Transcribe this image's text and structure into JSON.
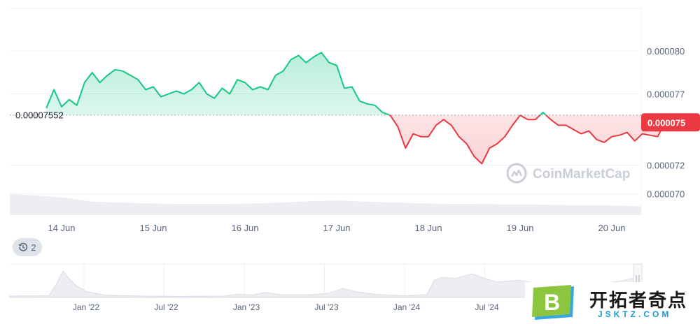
{
  "chart_data": {
    "type": "area",
    "title": "",
    "xlabel": "",
    "ylabel": "",
    "x_ticks": [
      "14 Jun",
      "15 Jun",
      "16 Jun",
      "17 Jun",
      "18 Jun",
      "19 Jun",
      "20 Jun"
    ],
    "y_ticks": [
      "0.000080",
      "0.000077",
      "0.000072",
      "0.000070"
    ],
    "ylim": [
      6.85e-05,
      8.3e-05
    ],
    "reference_value": 7.552e-05,
    "reference_label": "0.00007552",
    "current_price": 7.5e-05,
    "current_price_label": "0.000075",
    "up_color": "#16c784",
    "down_color": "#ea3943",
    "series": [
      {
        "x": [
          "13 Jun 20:00",
          "13 Jun 22:00",
          "14 Jun 00:00",
          "14 Jun 02:00",
          "14 Jun 04:00",
          "14 Jun 06:00",
          "14 Jun 08:00",
          "14 Jun 10:00",
          "14 Jun 12:00",
          "14 Jun 14:00",
          "14 Jun 16:00",
          "14 Jun 18:00",
          "14 Jun 20:00",
          "14 Jun 22:00",
          "15 Jun 00:00",
          "15 Jun 02:00",
          "15 Jun 04:00",
          "15 Jun 06:00",
          "15 Jun 08:00",
          "15 Jun 10:00",
          "15 Jun 12:00",
          "15 Jun 14:00",
          "15 Jun 16:00",
          "15 Jun 18:00",
          "15 Jun 20:00",
          "15 Jun 22:00",
          "16 Jun 00:00",
          "16 Jun 02:00",
          "16 Jun 04:00",
          "16 Jun 06:00",
          "16 Jun 08:00",
          "16 Jun 10:00",
          "16 Jun 12:00",
          "16 Jun 14:00",
          "16 Jun 16:00",
          "16 Jun 18:00",
          "16 Jun 20:00",
          "16 Jun 22:00",
          "17 Jun 00:00",
          "17 Jun 02:00",
          "17 Jun 04:00",
          "17 Jun 06:00",
          "17 Jun 08:00",
          "17 Jun 10:00",
          "17 Jun 12:00",
          "17 Jun 14:00",
          "17 Jun 16:00",
          "17 Jun 18:00",
          "17 Jun 20:00",
          "17 Jun 22:00",
          "18 Jun 00:00",
          "18 Jun 02:00",
          "18 Jun 04:00",
          "18 Jun 06:00",
          "18 Jun 08:00",
          "18 Jun 10:00",
          "18 Jun 12:00",
          "18 Jun 14:00",
          "18 Jun 16:00",
          "18 Jun 18:00",
          "18 Jun 20:00",
          "18 Jun 22:00",
          "19 Jun 00:00",
          "19 Jun 02:00",
          "19 Jun 04:00",
          "19 Jun 06:00",
          "19 Jun 08:00",
          "19 Jun 10:00",
          "19 Jun 12:00",
          "19 Jun 14:00",
          "19 Jun 16:00",
          "19 Jun 18:00",
          "19 Jun 20:00",
          "19 Jun 22:00",
          "20 Jun 00:00",
          "20 Jun 02:00",
          "20 Jun 04:00",
          "20 Jun 06:00",
          "20 Jun 08:00",
          "20 Jun 10:00",
          "20 Jun 12:00",
          "20 Jun 14:00"
        ],
        "values": [
          7.6e-05,
          7.73e-05,
          7.61e-05,
          7.66e-05,
          7.62e-05,
          7.78e-05,
          7.85e-05,
          7.78e-05,
          7.83e-05,
          7.87e-05,
          7.86e-05,
          7.83e-05,
          7.8e-05,
          7.73e-05,
          7.75e-05,
          7.68e-05,
          7.7e-05,
          7.72e-05,
          7.7e-05,
          7.73e-05,
          7.78e-05,
          7.7e-05,
          7.67e-05,
          7.74e-05,
          7.7e-05,
          7.8e-05,
          7.78e-05,
          7.73e-05,
          7.75e-05,
          7.73e-05,
          7.83e-05,
          7.86e-05,
          7.94e-05,
          7.97e-05,
          7.92e-05,
          7.96e-05,
          7.99e-05,
          7.92e-05,
          7.9e-05,
          7.74e-05,
          7.75e-05,
          7.65e-05,
          7.63e-05,
          7.62e-05,
          7.57e-05,
          7.55e-05,
          7.47e-05,
          7.32e-05,
          7.42e-05,
          7.4e-05,
          7.4e-05,
          7.48e-05,
          7.52e-05,
          7.48e-05,
          7.4e-05,
          7.35e-05,
          7.26e-05,
          7.21e-05,
          7.32e-05,
          7.35e-05,
          7.4e-05,
          7.48e-05,
          7.55e-05,
          7.52e-05,
          7.52e-05,
          7.57e-05,
          7.52e-05,
          7.48e-05,
          7.48e-05,
          7.45e-05,
          7.42e-05,
          7.44e-05,
          7.38e-05,
          7.36e-05,
          7.4e-05,
          7.41e-05,
          7.43e-05,
          7.37e-05,
          7.42e-05,
          7.41e-05,
          7.4e-05,
          7.5e-05
        ]
      }
    ],
    "volume_relative": [
      0.75,
      0.7,
      0.62,
      0.48,
      0.45,
      0.42,
      0.4,
      0.4,
      0.4,
      0.42,
      0.45,
      0.5,
      0.52,
      0.48,
      0.45,
      0.42,
      0.4,
      0.4,
      0.38,
      0.38,
      0.36,
      0.35,
      0.34,
      0.32
    ],
    "navigator_ticks": [
      "Jan '22",
      "Jul '22",
      "Jan '23",
      "Jul '23",
      "Jan '24",
      "Jul '24"
    ],
    "watermark": "CoinMarketCap",
    "legend": "none",
    "grid": true
  },
  "history_badge": {
    "count": "2",
    "icon": "history-clock-icon"
  },
  "site_badge": {
    "name": "开拓者奇点",
    "url": "JSKTZ.COM",
    "logo_letter": "B"
  }
}
